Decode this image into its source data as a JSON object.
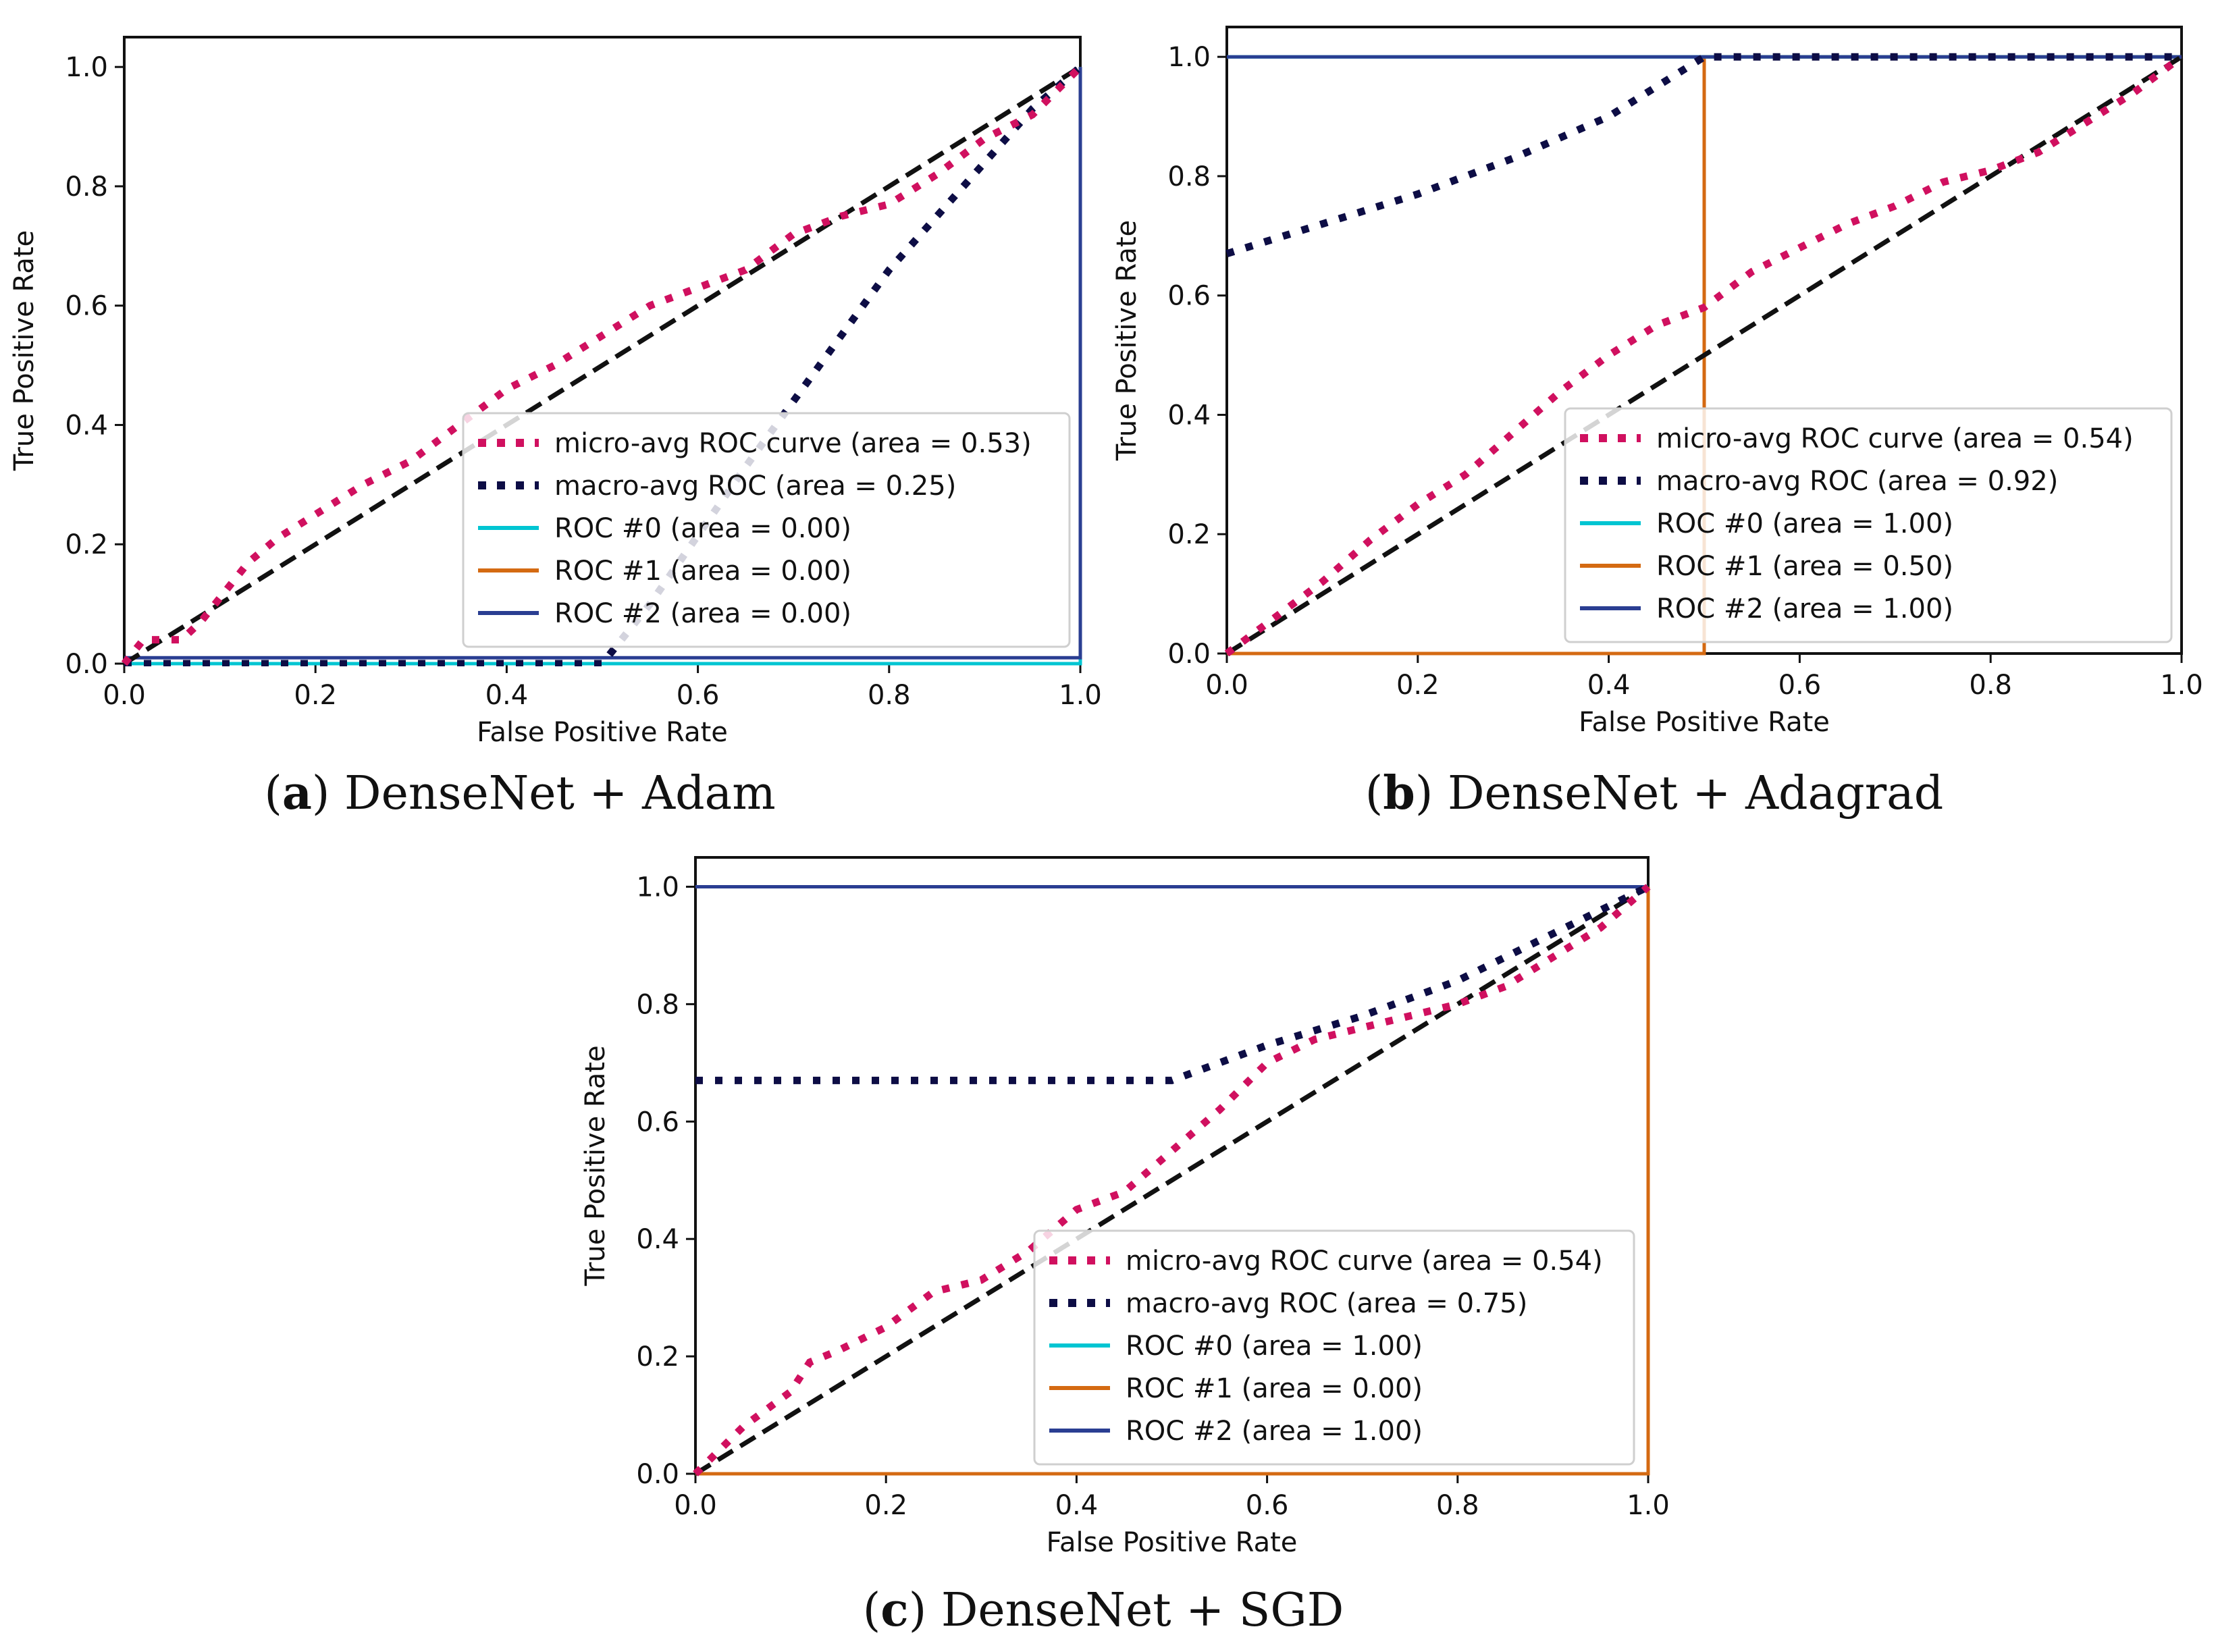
{
  "colors": {
    "micro": "#d0105f",
    "macro": "#0d0d45",
    "roc0": "#00c5d2",
    "roc1": "#d46a12",
    "roc2": "#2a3e92",
    "chance": "#111111",
    "axis": "#111111"
  },
  "chart_data": [
    {
      "id": "a",
      "type": "line",
      "caption_letter": "a",
      "caption_text": " DenseNet + Adam",
      "xlabel": "False Positive Rate",
      "ylabel": "True Positive Rate",
      "xlim": [
        0,
        1
      ],
      "ylim": [
        0,
        1.05
      ],
      "xticks": [
        0.0,
        0.2,
        0.4,
        0.6,
        0.8,
        1.0
      ],
      "yticks": [
        0.0,
        0.2,
        0.4,
        0.6,
        0.8,
        1.0
      ],
      "tick_labels": [
        "0.0",
        "0.2",
        "0.4",
        "0.6",
        "0.8",
        "1.0"
      ],
      "legend_position": "lower-right",
      "series": [
        {
          "key": "micro",
          "name": "micro-avg ROC curve (area = 0.53)",
          "style": "dotted",
          "x": [
            0,
            0.02,
            0.06,
            0.08,
            0.1,
            0.13,
            0.16,
            0.2,
            0.25,
            0.3,
            0.35,
            0.4,
            0.45,
            0.5,
            0.55,
            0.6,
            0.65,
            0.7,
            0.75,
            0.8,
            0.85,
            0.9,
            0.95,
            1.0
          ],
          "y": [
            0,
            0.04,
            0.04,
            0.07,
            0.11,
            0.17,
            0.21,
            0.25,
            0.3,
            0.34,
            0.4,
            0.46,
            0.5,
            0.55,
            0.6,
            0.63,
            0.66,
            0.72,
            0.75,
            0.77,
            0.82,
            0.88,
            0.92,
            1.0
          ]
        },
        {
          "key": "macro",
          "name": "macro-avg ROC (area = 0.25)",
          "style": "dotted",
          "x": [
            0,
            0.5,
            0.55,
            0.65,
            0.8,
            0.95,
            1.0
          ],
          "y": [
            0,
            0,
            0.1,
            0.33,
            0.66,
            0.93,
            1.0
          ]
        },
        {
          "key": "roc0",
          "name": "ROC #0 (area = 0.00)",
          "style": "solid",
          "x": [
            0,
            1,
            1
          ],
          "y": [
            0,
            0,
            1
          ]
        },
        {
          "key": "roc1",
          "name": "ROC #1 (area = 0.00)",
          "style": "solid",
          "x": [
            0,
            1,
            1
          ],
          "y": [
            0,
            0,
            1
          ]
        },
        {
          "key": "roc2",
          "name": "ROC #2 (area = 0.00)",
          "style": "solid",
          "x": [
            0,
            1,
            1
          ],
          "y": [
            0.01,
            0.01,
            1
          ]
        },
        {
          "key": "chance",
          "name": "",
          "style": "dashed",
          "x": [
            0,
            1
          ],
          "y": [
            0,
            1
          ]
        }
      ]
    },
    {
      "id": "b",
      "type": "line",
      "caption_letter": "b",
      "caption_text": " DenseNet + Adagrad",
      "xlabel": "False Positive Rate",
      "ylabel": "True Positive Rate",
      "xlim": [
        0,
        1
      ],
      "ylim": [
        0,
        1.05
      ],
      "xticks": [
        0.0,
        0.2,
        0.4,
        0.6,
        0.8,
        1.0
      ],
      "yticks": [
        0.0,
        0.2,
        0.4,
        0.6,
        0.8,
        1.0
      ],
      "tick_labels": [
        "0.0",
        "0.2",
        "0.4",
        "0.6",
        "0.8",
        "1.0"
      ],
      "legend_position": "lower-right",
      "series": [
        {
          "key": "micro",
          "name": "micro-avg ROC curve (area = 0.54)",
          "style": "dotted",
          "x": [
            0,
            0.05,
            0.1,
            0.15,
            0.2,
            0.25,
            0.3,
            0.35,
            0.4,
            0.45,
            0.5,
            0.55,
            0.6,
            0.65,
            0.7,
            0.75,
            0.8,
            0.85,
            0.9,
            0.95,
            1.0
          ],
          "y": [
            0,
            0.06,
            0.12,
            0.19,
            0.25,
            0.3,
            0.37,
            0.44,
            0.5,
            0.55,
            0.58,
            0.64,
            0.68,
            0.72,
            0.75,
            0.79,
            0.81,
            0.84,
            0.89,
            0.94,
            1.0
          ]
        },
        {
          "key": "macro",
          "name": "macro-avg ROC (area = 0.92)",
          "style": "dotted",
          "x": [
            0,
            0.1,
            0.2,
            0.3,
            0.4,
            0.5,
            0.75,
            1.0
          ],
          "y": [
            0.67,
            0.72,
            0.77,
            0.83,
            0.9,
            1.0,
            1.0,
            1.0
          ]
        },
        {
          "key": "roc0",
          "name": "ROC #0 (area = 1.00)",
          "style": "solid",
          "x": [
            0,
            1
          ],
          "y": [
            1,
            1
          ]
        },
        {
          "key": "roc1",
          "name": "ROC #1 (area = 0.50)",
          "style": "solid",
          "x": [
            0,
            0.5,
            0.5,
            1
          ],
          "y": [
            0,
            0,
            1,
            1
          ]
        },
        {
          "key": "roc2",
          "name": "ROC #2 (area = 1.00)",
          "style": "solid",
          "x": [
            0,
            1
          ],
          "y": [
            1,
            1
          ]
        },
        {
          "key": "chance",
          "name": "",
          "style": "dashed",
          "x": [
            0,
            1
          ],
          "y": [
            0,
            1
          ]
        }
      ]
    },
    {
      "id": "c",
      "type": "line",
      "caption_letter": "c",
      "caption_text": " DenseNet + SGD",
      "xlabel": "False Positive Rate",
      "ylabel": "True Positive Rate",
      "xlim": [
        0,
        1
      ],
      "ylim": [
        0,
        1.05
      ],
      "xticks": [
        0.0,
        0.2,
        0.4,
        0.6,
        0.8,
        1.0
      ],
      "yticks": [
        0.0,
        0.2,
        0.4,
        0.6,
        0.8,
        1.0
      ],
      "tick_labels": [
        "0.0",
        "0.2",
        "0.4",
        "0.6",
        "0.8",
        "1.0"
      ],
      "legend_position": "lower-right",
      "series": [
        {
          "key": "micro",
          "name": "micro-avg ROC curve (area = 0.54)",
          "style": "dotted",
          "x": [
            0,
            0.05,
            0.1,
            0.12,
            0.15,
            0.2,
            0.25,
            0.3,
            0.35,
            0.4,
            0.45,
            0.5,
            0.55,
            0.6,
            0.65,
            0.7,
            0.75,
            0.8,
            0.85,
            0.9,
            0.95,
            1.0
          ],
          "y": [
            0,
            0.08,
            0.14,
            0.19,
            0.21,
            0.25,
            0.31,
            0.33,
            0.38,
            0.45,
            0.48,
            0.55,
            0.62,
            0.7,
            0.74,
            0.76,
            0.78,
            0.8,
            0.83,
            0.88,
            0.93,
            1.0
          ]
        },
        {
          "key": "macro",
          "name": "macro-avg ROC (area = 0.75)",
          "style": "dotted",
          "x": [
            0,
            0.5,
            0.55,
            0.6,
            0.7,
            0.8,
            0.9,
            1.0
          ],
          "y": [
            0.67,
            0.67,
            0.7,
            0.73,
            0.78,
            0.84,
            0.92,
            1.0
          ]
        },
        {
          "key": "roc0",
          "name": "ROC #0 (area = 1.00)",
          "style": "solid",
          "x": [
            0,
            1
          ],
          "y": [
            1,
            1
          ]
        },
        {
          "key": "roc1",
          "name": "ROC #1 (area = 0.00)",
          "style": "solid",
          "x": [
            0,
            1,
            1
          ],
          "y": [
            0,
            0,
            1
          ]
        },
        {
          "key": "roc2",
          "name": "ROC #2 (area = 1.00)",
          "style": "solid",
          "x": [
            0,
            1
          ],
          "y": [
            1,
            1
          ]
        },
        {
          "key": "chance",
          "name": "",
          "style": "dashed",
          "x": [
            0,
            1
          ],
          "y": [
            0,
            1
          ]
        }
      ]
    }
  ]
}
